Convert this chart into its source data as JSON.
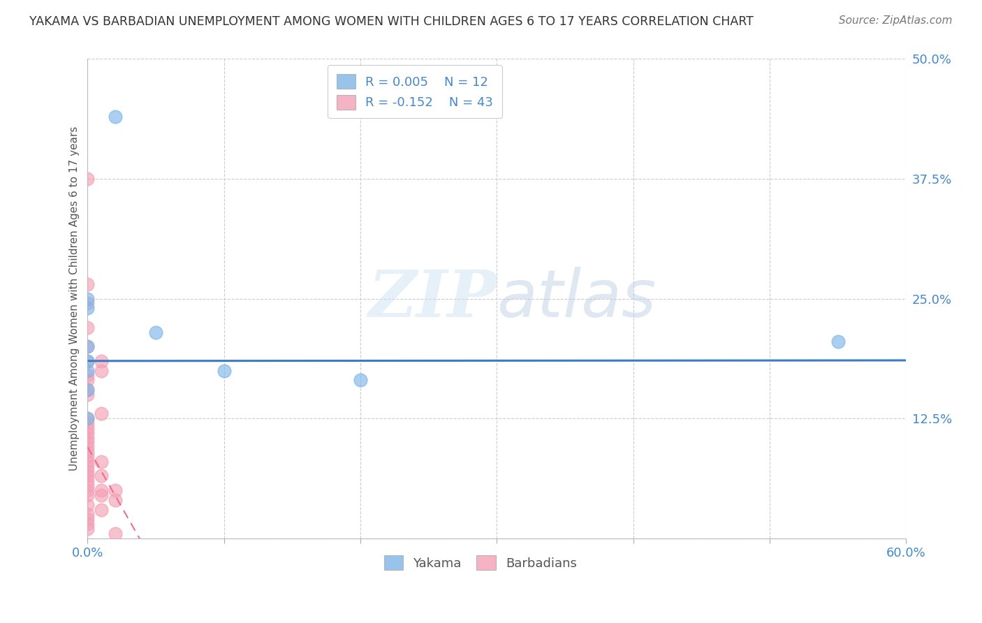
{
  "title": "YAKAMA VS BARBADIAN UNEMPLOYMENT AMONG WOMEN WITH CHILDREN AGES 6 TO 17 YEARS CORRELATION CHART",
  "source": "Source: ZipAtlas.com",
  "ylabel": "Unemployment Among Women with Children Ages 6 to 17 years",
  "xlim": [
    0.0,
    0.6
  ],
  "ylim": [
    0.0,
    0.5
  ],
  "xticks": [
    0.0,
    0.1,
    0.2,
    0.3,
    0.4,
    0.5,
    0.6
  ],
  "xticklabels": [
    "0.0%",
    "",
    "",
    "",
    "",
    "",
    "60.0%"
  ],
  "yticks": [
    0.0,
    0.125,
    0.25,
    0.375,
    0.5
  ],
  "yticklabels": [
    "",
    "12.5%",
    "25.0%",
    "37.5%",
    "50.0%"
  ],
  "background_color": "#ffffff",
  "grid_color": "#cccccc",
  "yakama_color": "#7eb6e8",
  "barbadian_color": "#f4a0b5",
  "trend_yakama_color": "#3a7cc7",
  "trend_barbadian_color": "#e87090",
  "legend_R_yakama": "R = 0.005",
  "legend_N_yakama": "N = 12",
  "legend_R_barbadian": "R = -0.152",
  "legend_N_barbadian": "N = 43",
  "yakama_points": [
    [
      0.02,
      0.44
    ],
    [
      0.0,
      0.25
    ],
    [
      0.0,
      0.24
    ],
    [
      0.05,
      0.215
    ],
    [
      0.0,
      0.2
    ],
    [
      0.0,
      0.185
    ],
    [
      0.0,
      0.175
    ],
    [
      0.1,
      0.175
    ],
    [
      0.0,
      0.155
    ],
    [
      0.0,
      0.125
    ],
    [
      0.2,
      0.165
    ],
    [
      0.55,
      0.205
    ]
  ],
  "barbadian_points": [
    [
      0.0,
      0.375
    ],
    [
      0.0,
      0.265
    ],
    [
      0.0,
      0.245
    ],
    [
      0.0,
      0.22
    ],
    [
      0.0,
      0.2
    ],
    [
      0.0,
      0.185
    ],
    [
      0.01,
      0.185
    ],
    [
      0.01,
      0.175
    ],
    [
      0.0,
      0.17
    ],
    [
      0.0,
      0.165
    ],
    [
      0.0,
      0.155
    ],
    [
      0.0,
      0.15
    ],
    [
      0.01,
      0.13
    ],
    [
      0.0,
      0.125
    ],
    [
      0.0,
      0.12
    ],
    [
      0.0,
      0.115
    ],
    [
      0.0,
      0.11
    ],
    [
      0.0,
      0.105
    ],
    [
      0.0,
      0.1
    ],
    [
      0.0,
      0.095
    ],
    [
      0.0,
      0.09
    ],
    [
      0.0,
      0.085
    ],
    [
      0.0,
      0.08
    ],
    [
      0.01,
      0.08
    ],
    [
      0.0,
      0.075
    ],
    [
      0.0,
      0.07
    ],
    [
      0.0,
      0.065
    ],
    [
      0.01,
      0.065
    ],
    [
      0.0,
      0.06
    ],
    [
      0.0,
      0.055
    ],
    [
      0.0,
      0.05
    ],
    [
      0.01,
      0.05
    ],
    [
      0.02,
      0.05
    ],
    [
      0.0,
      0.045
    ],
    [
      0.01,
      0.045
    ],
    [
      0.02,
      0.04
    ],
    [
      0.0,
      0.035
    ],
    [
      0.01,
      0.03
    ],
    [
      0.0,
      0.025
    ],
    [
      0.0,
      0.02
    ],
    [
      0.0,
      0.015
    ],
    [
      0.0,
      0.01
    ],
    [
      0.02,
      0.005
    ]
  ],
  "yakama_trend_y_intercept": 0.185,
  "yakama_trend_slope": 0.001,
  "barbadian_trend_y_intercept": 0.095,
  "barbadian_trend_slope": -2.5,
  "barbadian_trend_x_end": 0.16
}
